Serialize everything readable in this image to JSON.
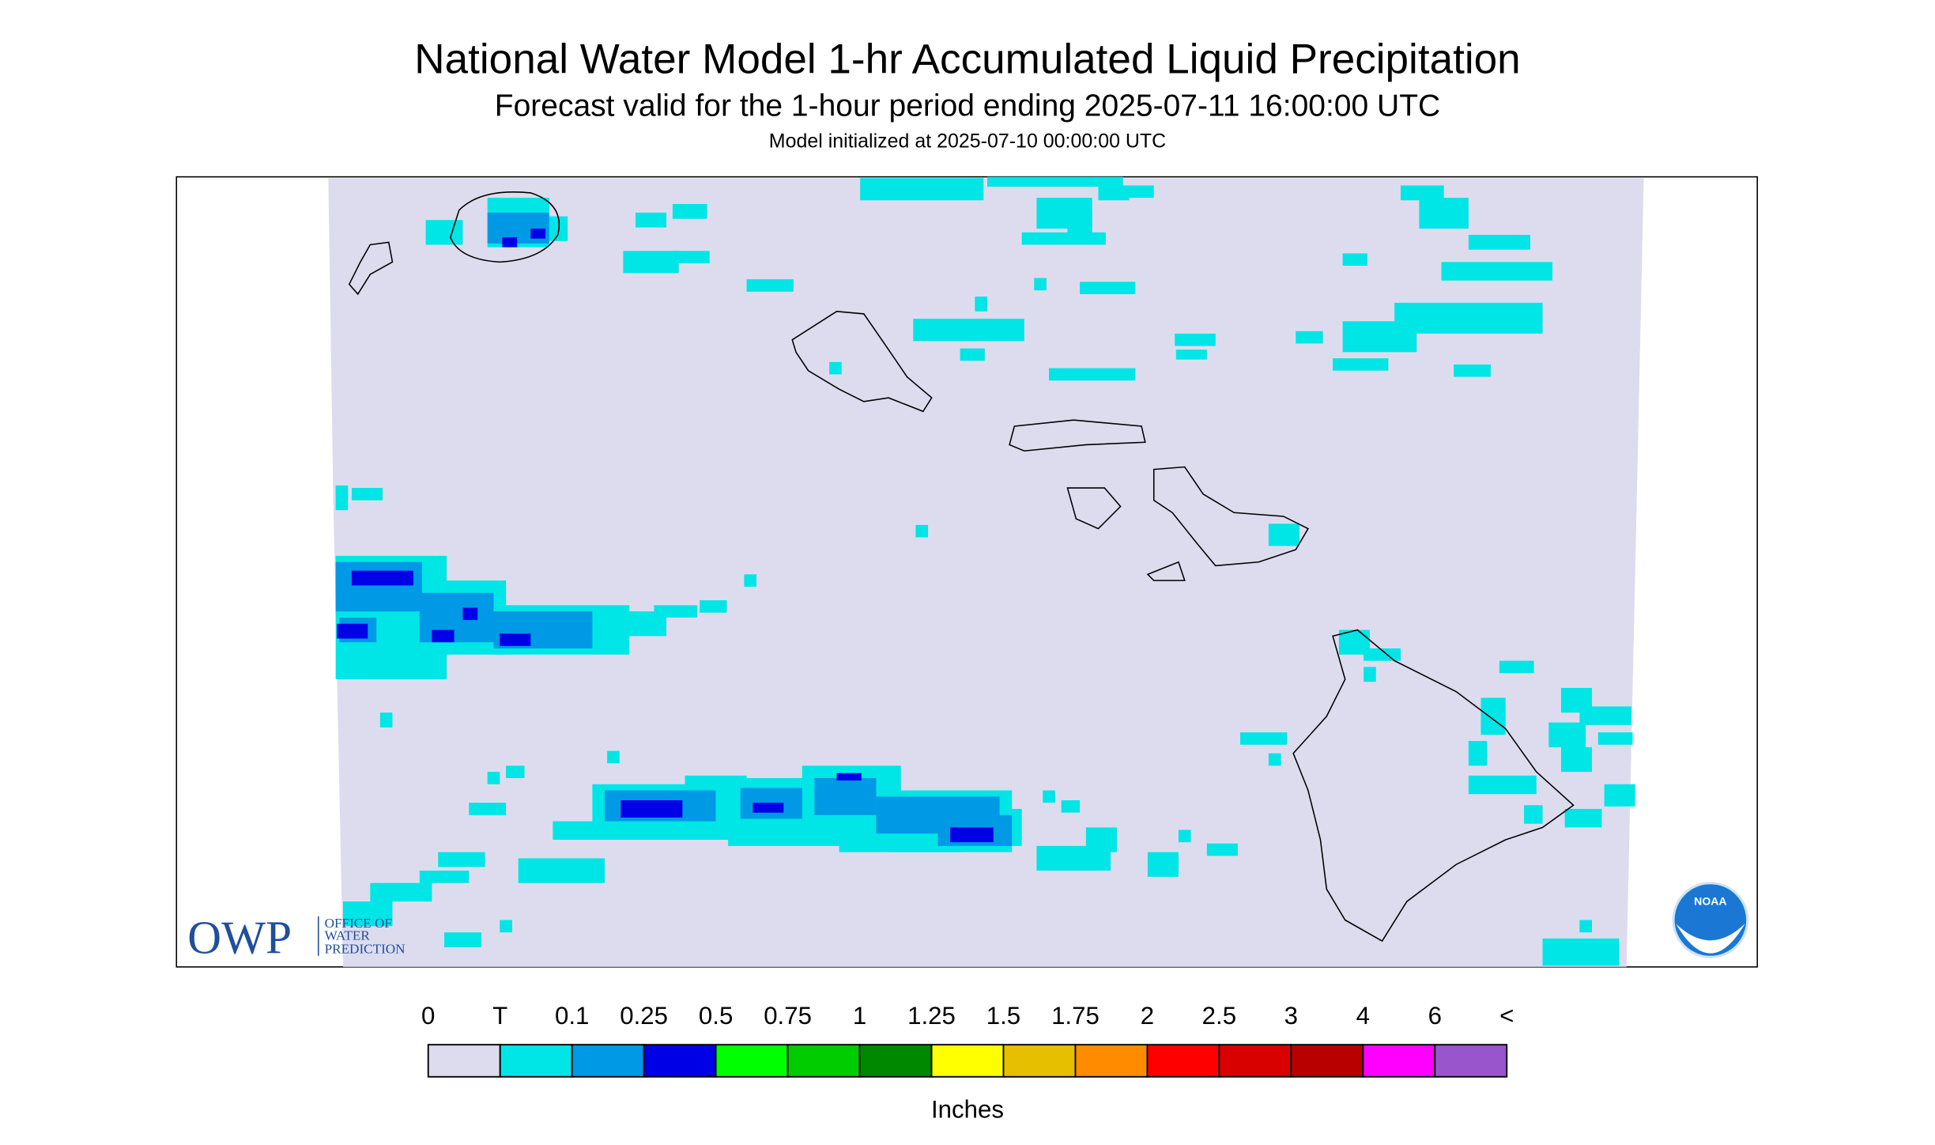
{
  "header": {
    "title": "National Water Model 1-hr Accumulated Liquid Precipitation",
    "subtitle": "Forecast valid for the 1-hour period ending 2025-07-11 16:00:00 UTC",
    "init": "Model initialized at 2025-07-10 00:00:00 UTC"
  },
  "logos": {
    "owp": "OWP",
    "owp_lines": [
      "OFFICE OF",
      "WATER",
      "PREDICTION"
    ],
    "noaa": "NOAA"
  },
  "legend": {
    "labels": [
      "0",
      "T",
      "0.1",
      "0.25",
      "0.5",
      "0.75",
      "1",
      "1.25",
      "1.5",
      "1.75",
      "2",
      "2.5",
      "3",
      "4",
      "6",
      "<"
    ],
    "colors": [
      "#dcdcee",
      "#00e5e5",
      "#0099e6",
      "#0000e6",
      "#00ff00",
      "#00cc00",
      "#008800",
      "#ffff00",
      "#e6c000",
      "#ff8c00",
      "#ff0000",
      "#d90000",
      "#b80000",
      "#ff00ff",
      "#9955cc"
    ],
    "units": "Inches"
  }
}
